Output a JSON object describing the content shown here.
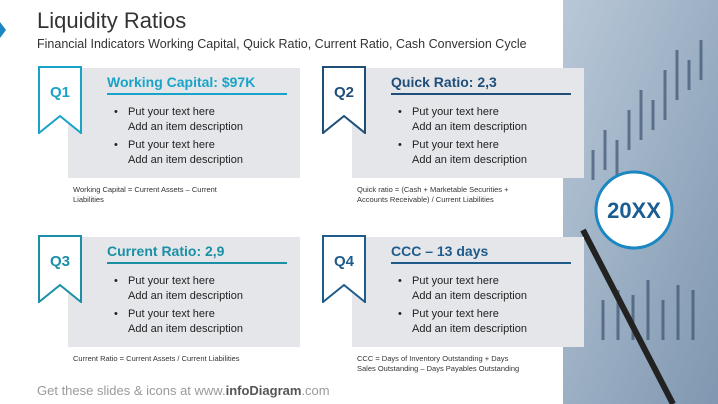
{
  "header": {
    "title": "Liquidity Ratios",
    "subtitle": "Financial Indicators Working Capital, Quick Ratio, Current Ratio, Cash Conversion Cycle"
  },
  "cards": [
    {
      "badge": "Q1",
      "heading": "Working Capital:  $97K",
      "items": [
        [
          "Put your text here",
          "Add an item description"
        ],
        [
          "Put your text here",
          "Add an item description"
        ]
      ],
      "note": "Working Capital = Current Assets – Current Liabilities"
    },
    {
      "badge": "Q2",
      "heading": "Quick Ratio: 2,3",
      "items": [
        [
          "Put your text here",
          "Add an item description"
        ],
        [
          "Put your text here",
          "Add an item description"
        ]
      ],
      "note": "Quick ratio = (Cash + Marketable Securities + Accounts Receivable) / Current Liabilities"
    },
    {
      "badge": "Q3",
      "heading": "Current Ratio: 2,9",
      "items": [
        [
          "Put your text here",
          "Add an item description"
        ],
        [
          "Put your text here",
          "Add an item description"
        ]
      ],
      "note": "Current Ratio = Current Assets / Current Liabilities"
    },
    {
      "badge": "Q4",
      "heading": "CCC – 13 days",
      "items": [
        [
          "Put your text here",
          "Add an item description"
        ],
        [
          "Put your text here",
          "Add an item description"
        ]
      ],
      "note": "CCC = Days of Inventory Outstanding + Days Sales Outstanding – Days Payables Outstanding"
    }
  ],
  "year": "20XX",
  "footer": {
    "prefix": "Get these slides & icons at www.",
    "brand": "infoDiagram",
    ".com": ".com",
    "suffix": ".com"
  }
}
